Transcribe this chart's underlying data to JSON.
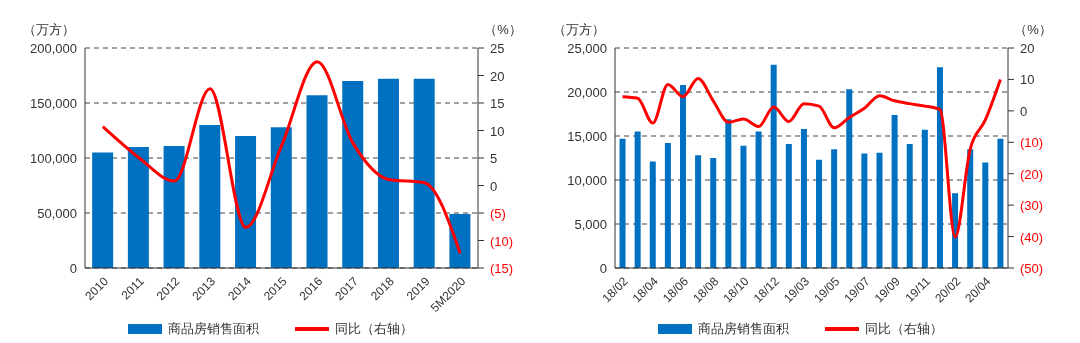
{
  "chart_data": [
    {
      "type": "bar",
      "ylabel": "（万方）",
      "y2label": "（%）",
      "categories": [
        "2010",
        "2011",
        "2012",
        "2013",
        "2014",
        "2015",
        "2016",
        "2017",
        "2018",
        "2019",
        "5M2020"
      ],
      "series": [
        {
          "name": "商品房销售面积",
          "color": "#0070c0",
          "values": [
            105000,
            110000,
            111000,
            130000,
            120000,
            128000,
            157000,
            170000,
            172000,
            172000,
            49000
          ]
        },
        {
          "name": "同比（右轴）",
          "type": "line",
          "axis": "y2",
          "color": "#ff0000",
          "values": [
            10.7,
            5.1,
            0.8,
            17.6,
            -7.6,
            7.2,
            22.5,
            7.7,
            1.1,
            0.5,
            -12.3
          ]
        }
      ],
      "ylim": [
        0,
        200000
      ],
      "yticks": [
        {
          "value": 0,
          "label": "0"
        },
        {
          "value": 50000,
          "label": "50,000"
        },
        {
          "value": 100000,
          "label": "100,000"
        },
        {
          "value": 150000,
          "label": "150,000"
        },
        {
          "value": 200000,
          "label": "200,000"
        }
      ],
      "y2lim": [
        -15,
        25
      ],
      "y2ticks": [
        {
          "value": -15,
          "label": "(15)"
        },
        {
          "value": -10,
          "label": "(10)"
        },
        {
          "value": -5,
          "label": "(5)"
        },
        0,
        5,
        10,
        15,
        20,
        25
      ],
      "grid": "y",
      "legend": "bottom",
      "marker": "none"
    },
    {
      "type": "bar",
      "ylabel": "（万方）",
      "y2label": "（%）",
      "categories": [
        "18/02",
        null,
        "18/04",
        null,
        "18/06",
        null,
        "18/08",
        null,
        "18/10",
        null,
        "18/12",
        null,
        "19/03",
        null,
        "19/05",
        null,
        "19/07",
        null,
        "19/09",
        null,
        "19/11",
        null,
        "20/02",
        null,
        "20/04",
        null
      ],
      "series": [
        {
          "name": "商品房销售面积",
          "color": "#0070c0",
          "values": [
            14700,
            15500,
            12100,
            14200,
            20800,
            12800,
            12500,
            16900,
            13900,
            15500,
            23100,
            14100,
            15800,
            12300,
            13500,
            20300,
            13000,
            13100,
            17400,
            14100,
            15700,
            22800,
            8500,
            13500,
            12000,
            14700
          ]
        },
        {
          "name": "同比（右轴）",
          "type": "line",
          "axis": "y2",
          "color": "#ff0000",
          "values": [
            4.5,
            4.0,
            -3.9,
            8.4,
            4.5,
            10.3,
            3.2,
            -3.6,
            -2.6,
            -5.0,
            1.2,
            -3.4,
            2.3,
            1.5,
            -5.4,
            -2.1,
            0.8,
            4.8,
            3.2,
            2.3,
            1.5,
            0.4,
            -40.1,
            -12.2,
            -2.9,
            10.0
          ]
        }
      ],
      "ylim": [
        0,
        25000
      ],
      "yticks": [
        {
          "value": 0,
          "label": "0"
        },
        {
          "value": 5000,
          "label": "5,000"
        },
        {
          "value": 10000,
          "label": "10,000"
        },
        {
          "value": 15000,
          "label": "15,000"
        },
        {
          "value": 20000,
          "label": "20,000"
        },
        {
          "value": 25000,
          "label": "25,000"
        }
      ],
      "y2lim": [
        -50,
        20
      ],
      "y2ticks": [
        {
          "value": -50,
          "label": "(50)"
        },
        {
          "value": -40,
          "label": "(40)"
        },
        {
          "value": -30,
          "label": "(30)"
        },
        {
          "value": -20,
          "label": "(20)"
        },
        {
          "value": -10,
          "label": "(10)"
        },
        0,
        10,
        20
      ],
      "grid": "y",
      "legend": "bottom",
      "marker": "none"
    }
  ]
}
